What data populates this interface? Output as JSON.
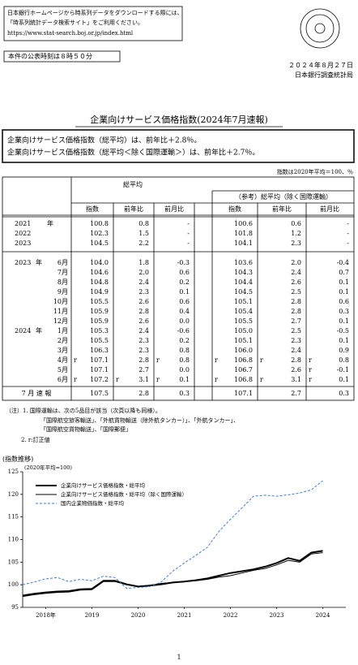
{
  "header": {
    "notice": [
      "日本銀行ホームページから時系列データをダウンロードする際には、",
      "「時系列統計データ検索サイト」をご利用ください。",
      "https://www.stat-search.boj.or.jp/index.html"
    ],
    "release_time": "本件の公表時刻は８時５０分",
    "date": "２０２４年８月２７日",
    "org": "日本銀行調査統計局"
  },
  "title": "企業向けサービス価格指数(2024年7月速報)",
  "summary": [
    "企業向けサービス価格指数（総平均）は、前年比＋2.8％。",
    "企業向けサービス価格指数（総平均＜除く国際運輸＞）は、前年比＋2.7％。"
  ],
  "table": {
    "unit": "指数は2020年平均＝100、％",
    "group1": "総平均",
    "group2": "（参考）総平均（除く国際運輸）",
    "columns": [
      "指数",
      "前年比",
      "前月比",
      "指数",
      "前年比",
      "前月比"
    ],
    "rows": [
      {
        "year": "2021",
        "unit": "年",
        "cells": [
          "100.8",
          "0.8",
          "-",
          "100.6",
          "0.6",
          "-"
        ]
      },
      {
        "year": "2022",
        "cells": [
          "102.3",
          "1.5",
          "-",
          "101.8",
          "1.2",
          "-"
        ]
      },
      {
        "year": "2023",
        "cells": [
          "104.5",
          "2.2",
          "-",
          "104.1",
          "2.3",
          "-"
        ]
      },
      {
        "year": "2023",
        "unit": "年",
        "month": "6月",
        "cells": [
          "104.0",
          "1.8",
          "-0.3",
          "103.6",
          "2.0",
          "-0.4"
        ]
      },
      {
        "month": "7月",
        "cells": [
          "104.6",
          "2.0",
          "0.6",
          "104.3",
          "2.4",
          "0.7"
        ]
      },
      {
        "month": "8月",
        "cells": [
          "104.8",
          "2.4",
          "0.2",
          "104.4",
          "2.6",
          "0.1"
        ]
      },
      {
        "month": "9月",
        "cells": [
          "104.9",
          "2.3",
          "0.1",
          "104.5",
          "2.5",
          "0.1"
        ]
      },
      {
        "month": "10月",
        "cells": [
          "105.5",
          "2.6",
          "0.6",
          "105.1",
          "2.8",
          "0.6"
        ]
      },
      {
        "month": "11月",
        "cells": [
          "105.9",
          "2.8",
          "0.4",
          "105.4",
          "2.8",
          "0.3"
        ]
      },
      {
        "month": "12月",
        "cells": [
          "105.9",
          "2.6",
          "0.0",
          "105.5",
          "2.7",
          "0.1"
        ]
      },
      {
        "year": "2024",
        "unit": "年",
        "month": "1月",
        "cells": [
          "105.3",
          "2.4",
          "-0.6",
          "105.0",
          "2.5",
          "-0.5"
        ]
      },
      {
        "month": "2月",
        "cells": [
          "105.5",
          "2.3",
          "0.2",
          "105.1",
          "2.3",
          "0.1"
        ]
      },
      {
        "month": "3月",
        "cells": [
          "106.3",
          "2.3",
          "0.8",
          "106.0",
          "2.4",
          "0.9"
        ]
      },
      {
        "month": "4月",
        "cells": [
          {
            "mark": "r",
            "text": "107.1"
          },
          "2.8",
          {
            "mark": "r",
            "text": "0.8"
          },
          {
            "mark": "r",
            "text": "106.8"
          },
          {
            "mark": "r",
            "text": "2.8"
          },
          {
            "mark": "r",
            "text": "0.8"
          }
        ]
      },
      {
        "month": "5月",
        "cells": [
          "107.1",
          "2.7",
          "0.0",
          "106.7",
          "2.6",
          {
            "mark": "r",
            "text": "-0.1"
          }
        ]
      },
      {
        "month": "6月",
        "cells": [
          {
            "mark": "r",
            "text": "107.2"
          },
          {
            "mark": "r",
            "text": "3.1"
          },
          {
            "mark": "r",
            "text": "0.1"
          },
          {
            "mark": "r",
            "text": "106.8"
          },
          {
            "mark": "r",
            "text": "3.1"
          },
          {
            "mark": "r",
            "text": "0.1"
          }
        ]
      },
      {
        "label": "7 月 速 報",
        "cells": [
          "107.5",
          "2.8",
          "0.3",
          "107.1",
          "2.7",
          "0.3"
        ]
      }
    ]
  },
  "notes": [
    "（注）1. 国際運輸は、次の5品目が該当（次頁以降も同様）。",
    "「国際航空旅客輸送」、「外航貨物輸送（除外航タンカー）」、「外航タンカー」、",
    "「国際航空貨物輸送」、「国際郵便」",
    "2. r:訂正値"
  ],
  "chart": {
    "type": "line",
    "title": "(指数推移)",
    "ylabel": "(2020年平均=100)",
    "x": [
      2018,
      2018.25,
      2018.5,
      2018.75,
      2019,
      2019.25,
      2019.5,
      2019.75,
      2020,
      2020.25,
      2020.5,
      2020.75,
      2021,
      2021.25,
      2021.5,
      2021.75,
      2022,
      2022.25,
      2022.5,
      2022.75,
      2023,
      2023.25,
      2023.5,
      2023.75,
      2024,
      2024.25,
      2024.5
    ],
    "series": [
      {
        "name": "企業向けサービス価格指数・総平均",
        "color": "#000000",
        "style": "thick",
        "values": [
          97.6,
          98.0,
          98.3,
          98.5,
          98.6,
          99.0,
          99.1,
          100.9,
          100.9,
          100.1,
          99.6,
          99.8,
          100.1,
          100.5,
          100.7,
          101.0,
          101.4,
          102.0,
          102.6,
          103.0,
          103.4,
          104.0,
          104.8,
          105.9,
          105.3,
          107.1,
          107.5
        ]
      },
      {
        "name": "企業向けサービス価格指数・総平均（除く国際運輸）",
        "color": "#000000",
        "style": "thin",
        "values": [
          97.4,
          97.8,
          98.1,
          98.3,
          98.4,
          98.8,
          98.9,
          100.7,
          100.7,
          100.0,
          99.6,
          99.9,
          100.3,
          100.5,
          100.7,
          100.9,
          101.2,
          101.7,
          102.0,
          102.6,
          103.2,
          103.6,
          104.4,
          105.4,
          105.0,
          106.8,
          107.1
        ]
      },
      {
        "name": "国内企業物価指数・総平均",
        "color": "#3b7dd8",
        "style": "dashed",
        "values": [
          100.0,
          100.6,
          101.3,
          101.6,
          100.7,
          101.2,
          100.9,
          101.9,
          101.6,
          99.2,
          99.4,
          99.6,
          100.6,
          103.0,
          104.8,
          106.5,
          108.3,
          111.8,
          114.5,
          117.0,
          119.6,
          119.8,
          119.6,
          119.9,
          120.3,
          121.0,
          123.0
        ]
      }
    ],
    "xlim": [
      2018,
      2025
    ],
    "ylim": [
      95,
      125
    ],
    "yticks": [
      95,
      100,
      105,
      110,
      115,
      120,
      125
    ],
    "xticks": [
      {
        "value": 2018.5,
        "label": "2018年"
      },
      {
        "value": 2019.5,
        "label": "2019"
      },
      {
        "value": 2020.5,
        "label": "2020"
      },
      {
        "value": 2021.5,
        "label": "2021"
      },
      {
        "value": 2022.5,
        "label": "2022"
      },
      {
        "value": 2023.5,
        "label": "2023"
      },
      {
        "value": 2024.5,
        "label": "2024"
      }
    ]
  },
  "page_number": "1"
}
